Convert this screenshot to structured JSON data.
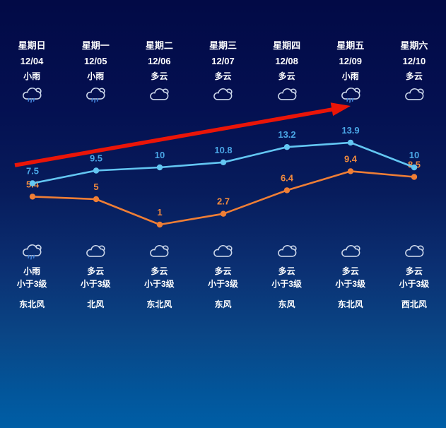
{
  "panel": {
    "background_top_color": "#020a46",
    "background_bottom_color": "#005ea6",
    "accent_arrow_color": "#ea1508"
  },
  "columns": [
    {
      "day": "星期日",
      "date": "12/04",
      "day_condition": "小雨",
      "day_icon": "rain",
      "night_icon": "rain",
      "night_condition": "小雨",
      "wind_level": "小于3级",
      "wind_direction": "东北风"
    },
    {
      "day": "星期一",
      "date": "12/05",
      "day_condition": "小雨",
      "day_icon": "rain",
      "night_icon": "cloudy",
      "night_condition": "多云",
      "wind_level": "小于3级",
      "wind_direction": "北风"
    },
    {
      "day": "星期二",
      "date": "12/06",
      "day_condition": "多云",
      "day_icon": "cloudy",
      "night_icon": "cloudy",
      "night_condition": "多云",
      "wind_level": "小于3级",
      "wind_direction": "东北风"
    },
    {
      "day": "星期三",
      "date": "12/07",
      "day_condition": "多云",
      "day_icon": "cloudy",
      "night_icon": "cloudy",
      "night_condition": "多云",
      "wind_level": "小于3级",
      "wind_direction": "东风"
    },
    {
      "day": "星期四",
      "date": "12/08",
      "day_condition": "多云",
      "day_icon": "cloudy",
      "night_icon": "cloudy",
      "night_condition": "多云",
      "wind_level": "小于3级",
      "wind_direction": "东风"
    },
    {
      "day": "星期五",
      "date": "12/09",
      "day_condition": "小雨",
      "day_icon": "rain",
      "night_icon": "cloudy",
      "night_condition": "多云",
      "wind_level": "小于3级",
      "wind_direction": "东北风"
    },
    {
      "day": "星期六",
      "date": "12/10",
      "day_condition": "多云",
      "day_icon": "cloudy",
      "night_icon": "cloudy",
      "night_condition": "多云",
      "wind_level": "小于3级",
      "wind_direction": "西北风"
    }
  ],
  "chart_data": {
    "type": "line",
    "categories": [
      "12/04",
      "12/05",
      "12/06",
      "12/07",
      "12/08",
      "12/09",
      "12/10"
    ],
    "series": [
      {
        "name": "high-temp",
        "color": "#63c6f2",
        "label_color": "#4aa6e6",
        "values": [
          7.5,
          9.5,
          10,
          10.8,
          13.2,
          13.9,
          10
        ]
      },
      {
        "name": "low-temp",
        "color": "#ef7e35",
        "label_color": "#f08a3e",
        "values": [
          5.4,
          5,
          1,
          2.7,
          6.4,
          9.4,
          8.5
        ]
      }
    ],
    "ylim": [
      0,
      15
    ],
    "grid": false,
    "legend": "none",
    "annotations": [
      {
        "type": "arrow",
        "label": "rising-trend-arrow",
        "color": "#ea1508",
        "direction": "up-right"
      }
    ]
  }
}
